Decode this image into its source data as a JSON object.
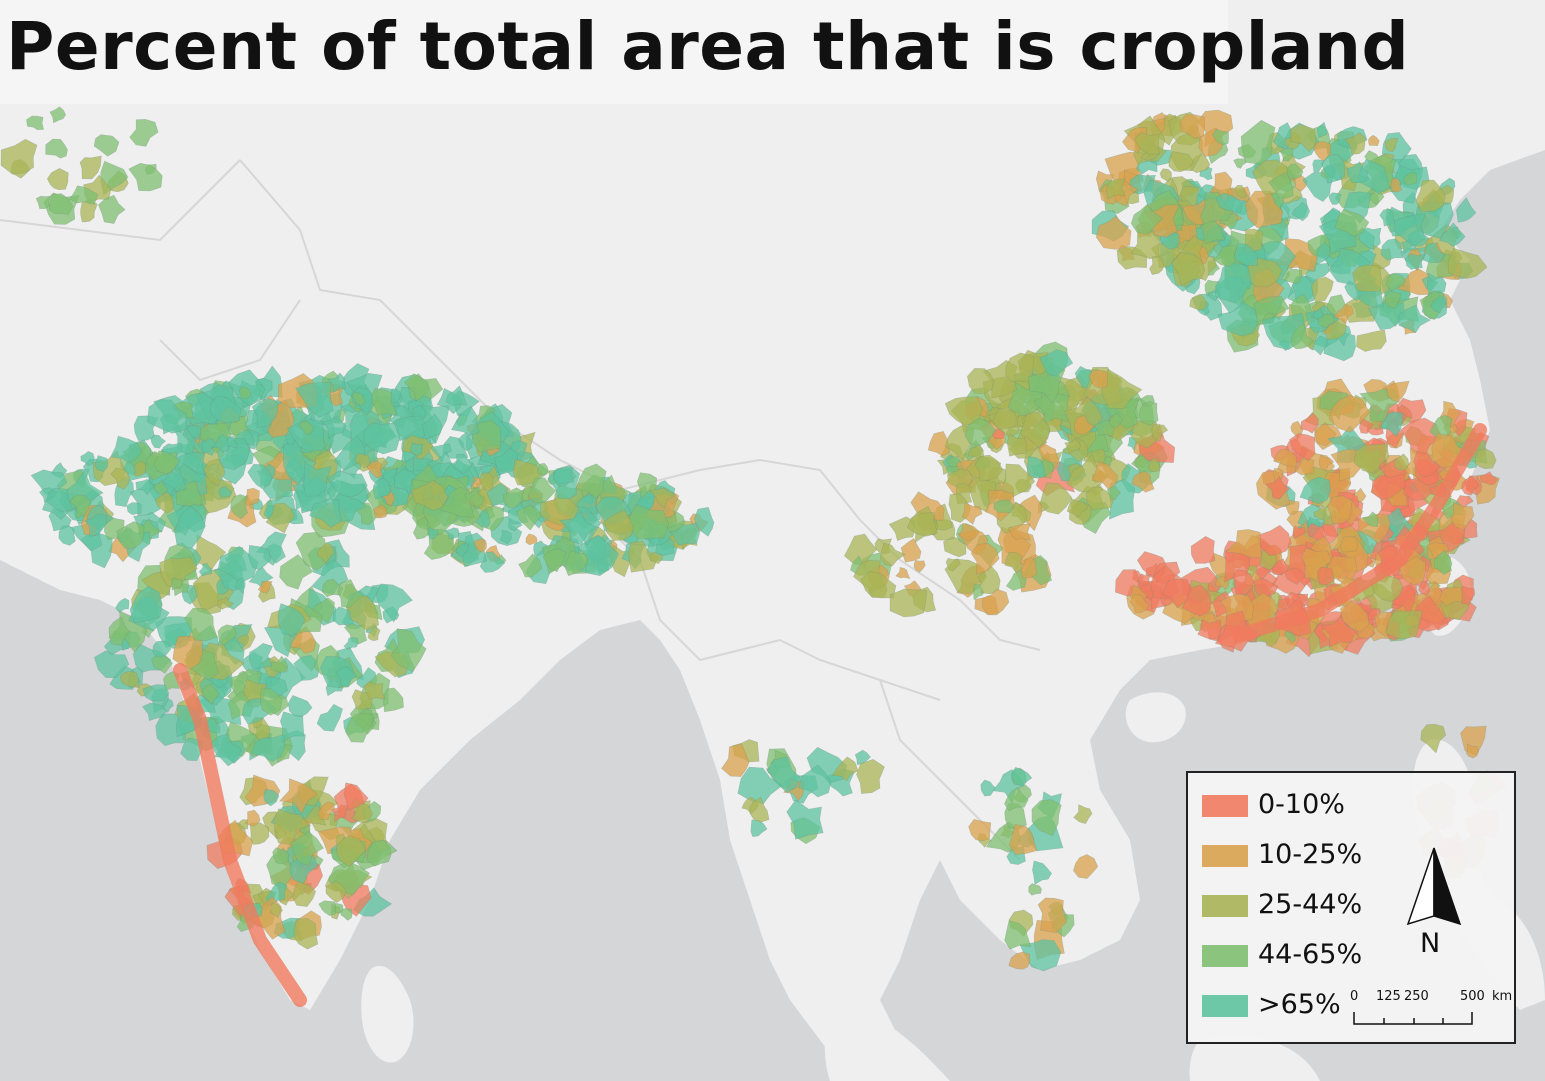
{
  "title": "Percent of total area that is cropland",
  "legend": {
    "items": [
      {
        "label": "0-10%",
        "color": "#f07b5f"
      },
      {
        "label": "10-25%",
        "color": "#d9a24e"
      },
      {
        "label": "25-44%",
        "color": "#a9b456"
      },
      {
        "label": "44-65%",
        "color": "#7fbf70"
      },
      {
        "label": ">65%",
        "color": "#5ec3a0"
      }
    ]
  },
  "north_arrow": {
    "label": "N"
  },
  "scale_bar": {
    "ticks": [
      "0",
      "125",
      "250",
      "500"
    ],
    "unit": "km"
  },
  "colors": {
    "land": "#efefef",
    "water": "#d4d6d8",
    "border": "#d9d9d9"
  }
}
